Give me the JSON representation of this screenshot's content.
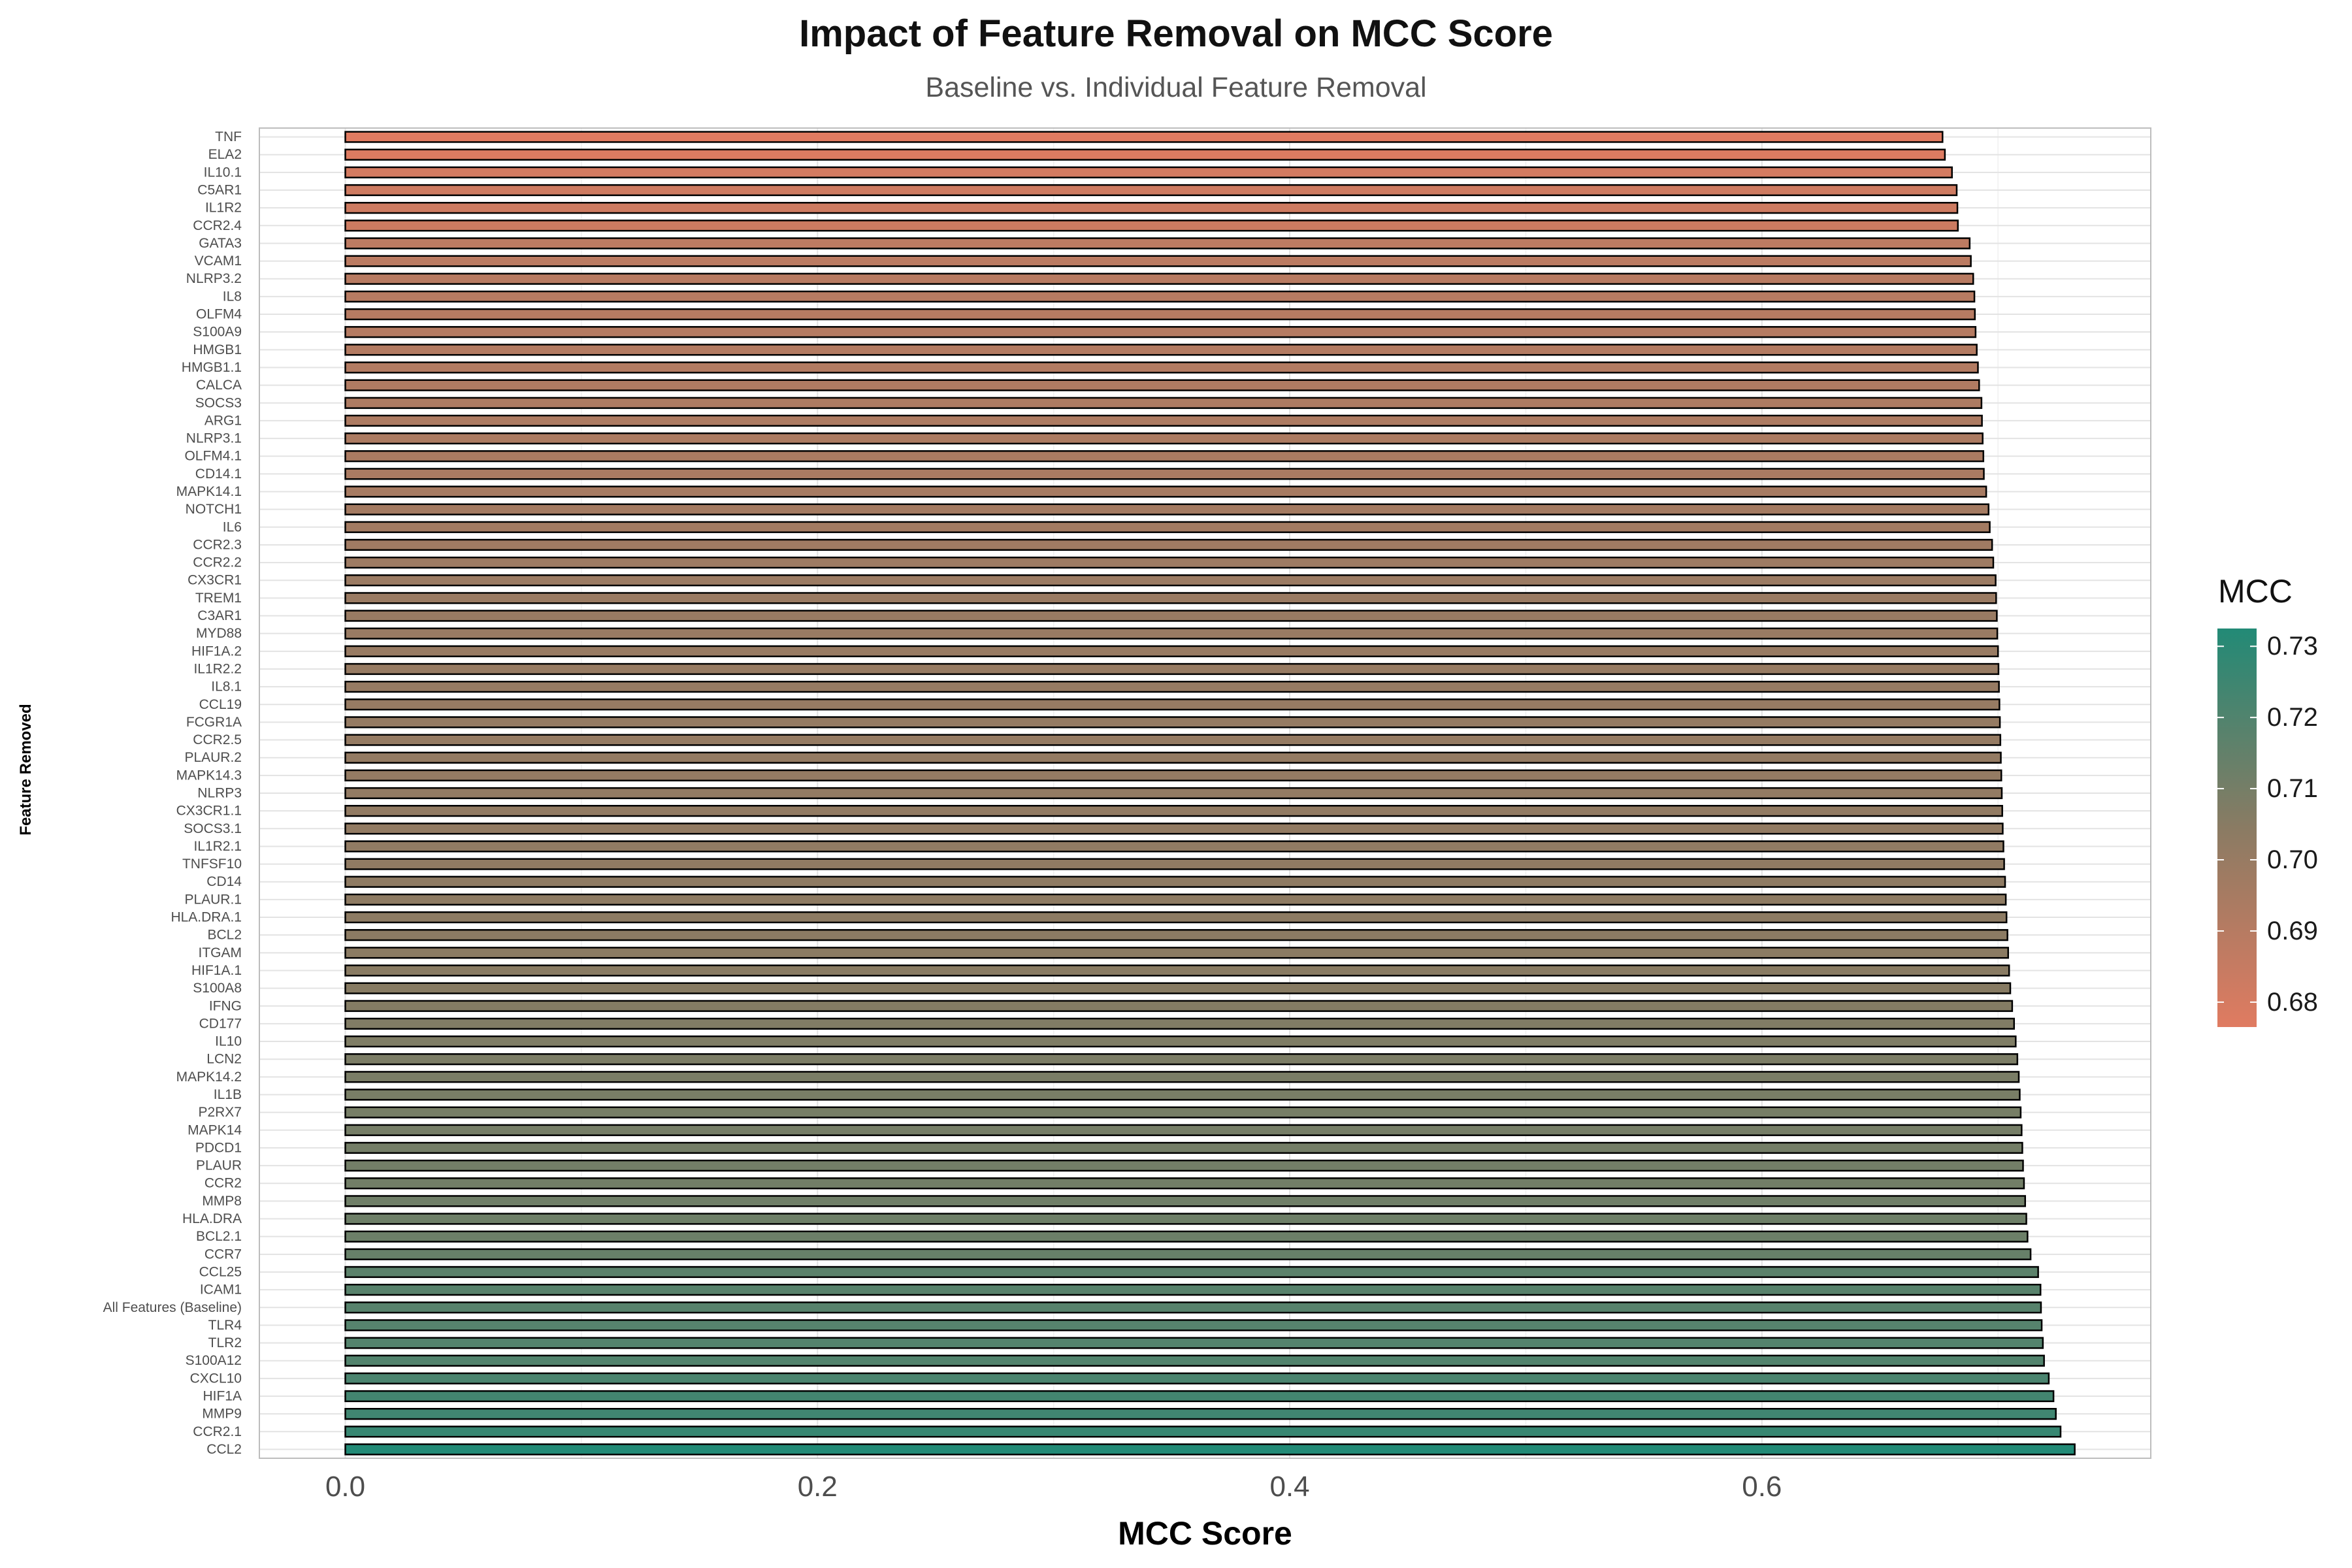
{
  "chart_data": {
    "type": "bar",
    "orientation": "horizontal",
    "title": "Impact of Feature Removal on MCC Score",
    "subtitle": "Baseline vs. Individual Feature Removal",
    "xlabel": "MCC Score",
    "ylabel": "Feature Removed",
    "xlim": [
      -0.0364,
      0.7647
    ],
    "x_ticks": [
      "0.0",
      "0.2",
      "0.4",
      "0.6"
    ],
    "grid": true,
    "legend": {
      "title": "MCC",
      "position": "right",
      "range": [
        0.6765,
        0.7325
      ],
      "ticks": [
        "0.68",
        "0.69",
        "0.70",
        "0.71",
        "0.72",
        "0.73"
      ],
      "low_color": "#E07B61",
      "high_color": "#228A76"
    },
    "bar_outline_color": "#000000",
    "categories": [
      "TNF",
      "ELA2",
      "IL10.1",
      "C5AR1",
      "IL1R2",
      "CCR2.4",
      "GATA3",
      "VCAM1",
      "NLRP3.2",
      "IL8",
      "OLFM4",
      "S100A9",
      "HMGB1",
      "HMGB1.1",
      "CALCA",
      "SOCS3",
      "ARG1",
      "NLRP3.1",
      "OLFM4.1",
      "CD14.1",
      "MAPK14.1",
      "NOTCH1",
      "IL6",
      "CCR2.3",
      "CCR2.2",
      "CX3CR1",
      "TREM1",
      "C3AR1",
      "MYD88",
      "HIF1A.2",
      "IL1R2.2",
      "IL8.1",
      "CCL19",
      "FCGR1A",
      "CCR2.5",
      "PLAUR.2",
      "MAPK14.3",
      "NLRP3",
      "CX3CR1.1",
      "SOCS3.1",
      "IL1R2.1",
      "TNFSF10",
      "CD14",
      "PLAUR.1",
      "HLA.DRA.1",
      "BCL2",
      "ITGAM",
      "HIF1A.1",
      "S100A8",
      "IFNG",
      "CD177",
      "IL10",
      "LCN2",
      "MAPK14.2",
      "IL1B",
      "P2RX7",
      "MAPK14",
      "PDCD1",
      "PLAUR",
      "CCR2",
      "MMP8",
      "HLA.DRA",
      "BCL2.1",
      "CCR7",
      "CCL25",
      "ICAM1",
      "All Features (Baseline)",
      "TLR4",
      "TLR2",
      "S100A12",
      "CXCL10",
      "HIF1A",
      "MMP9",
      "CCR2.1",
      "CCL2"
    ],
    "values": [
      0.6765,
      0.6775,
      0.6805,
      0.6825,
      0.6828,
      0.683,
      0.688,
      0.6885,
      0.6895,
      0.69,
      0.6902,
      0.6905,
      0.691,
      0.6915,
      0.692,
      0.693,
      0.6932,
      0.6935,
      0.6938,
      0.694,
      0.695,
      0.696,
      0.6965,
      0.6975,
      0.698,
      0.699,
      0.6992,
      0.6995,
      0.6997,
      0.7,
      0.7002,
      0.7004,
      0.7006,
      0.7008,
      0.701,
      0.7012,
      0.7014,
      0.7016,
      0.7018,
      0.702,
      0.7023,
      0.7026,
      0.703,
      0.7033,
      0.7036,
      0.704,
      0.7043,
      0.7047,
      0.7052,
      0.706,
      0.7068,
      0.7075,
      0.7082,
      0.7088,
      0.7092,
      0.7096,
      0.71,
      0.7103,
      0.7106,
      0.711,
      0.7115,
      0.712,
      0.7125,
      0.7138,
      0.717,
      0.718,
      0.7182,
      0.7185,
      0.719,
      0.7195,
      0.7215,
      0.7235,
      0.7245,
      0.7265,
      0.7325
    ]
  }
}
